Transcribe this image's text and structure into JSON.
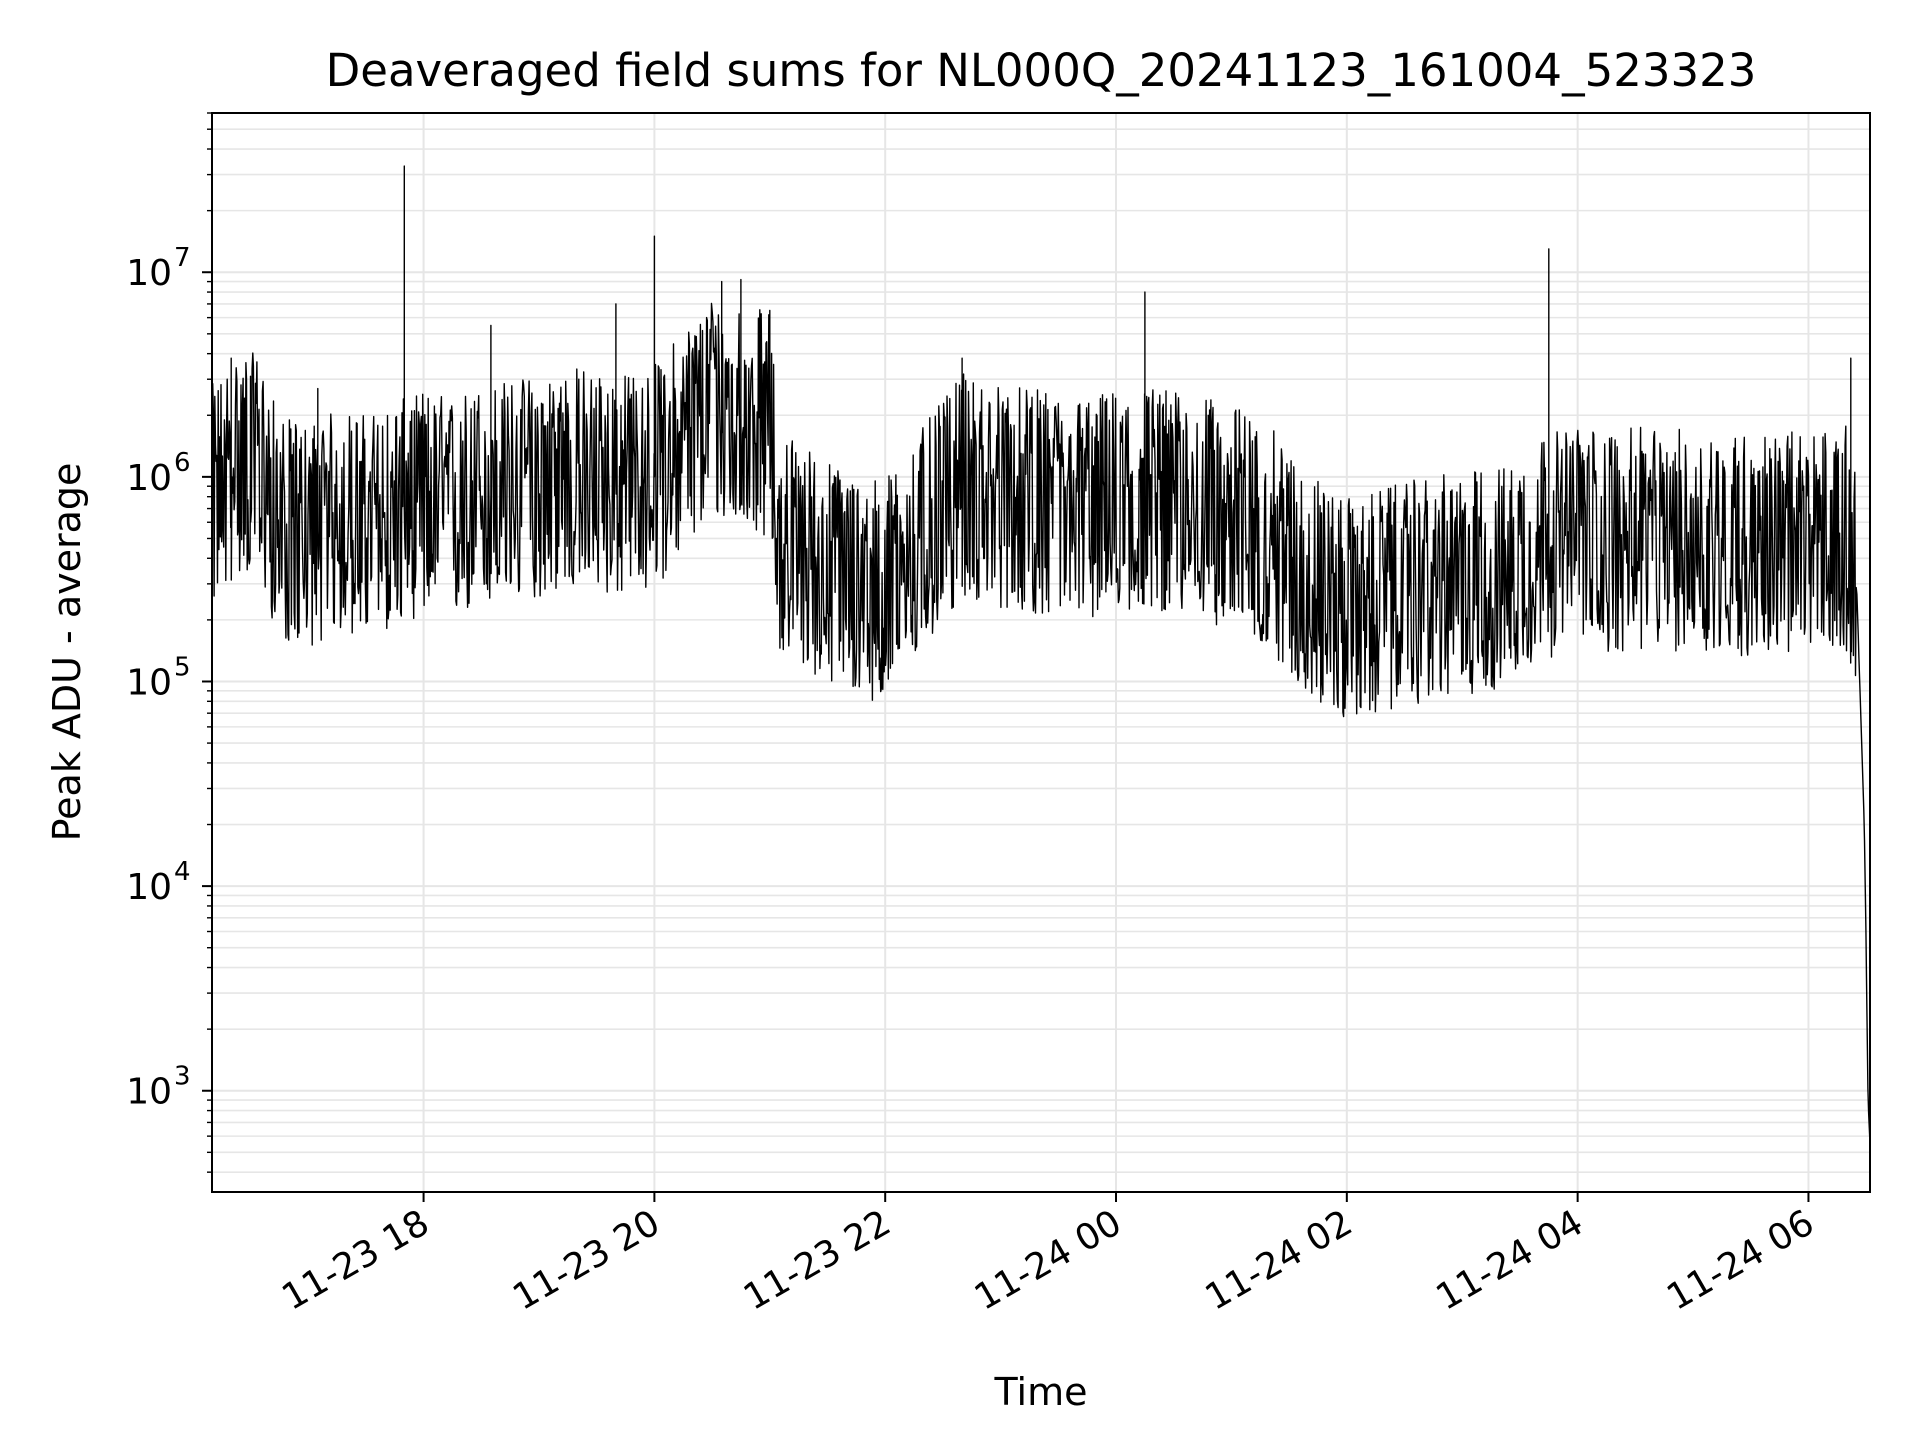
{
  "chart_data": {
    "type": "line",
    "title": "Deaveraged field sums for NL000Q_20241123_161004_523323",
    "xlabel": "Time",
    "ylabel": "Peak ADU - average",
    "yscale": "log",
    "grid": "on",
    "line_color": "#000000",
    "grid_color": "#e6e6e6",
    "xlim": [
      "2024-11-23 16:10",
      "2024-11-24 06:32"
    ],
    "ylim": [
      320,
      60000000
    ],
    "x_ticks": [
      {
        "value": "2024-11-23 18:00",
        "label": "11-23 18"
      },
      {
        "value": "2024-11-23 20:00",
        "label": "11-23 20"
      },
      {
        "value": "2024-11-23 22:00",
        "label": "11-23 22"
      },
      {
        "value": "2024-11-24 00:00",
        "label": "11-24 00"
      },
      {
        "value": "2024-11-24 02:00",
        "label": "11-24 02"
      },
      {
        "value": "2024-11-24 04:00",
        "label": "11-24 04"
      },
      {
        "value": "2024-11-24 06:00",
        "label": "11-24 06"
      }
    ],
    "y_ticks": [
      {
        "value": 1000,
        "base": "10",
        "exp": "3"
      },
      {
        "value": 10000,
        "base": "10",
        "exp": "4"
      },
      {
        "value": 100000,
        "base": "10",
        "exp": "5"
      },
      {
        "value": 1000000,
        "base": "10",
        "exp": "6"
      },
      {
        "value": 10000000,
        "base": "10",
        "exp": "7"
      }
    ],
    "series": [
      {
        "points": [
          [
            "2024-11-23 16:10",
            800000
          ],
          [
            "2024-11-23 16:25",
            1200000
          ],
          [
            "2024-11-23 16:35",
            1100000
          ],
          [
            "2024-11-23 16:45",
            550000
          ],
          [
            "2024-11-23 17:00",
            520000
          ],
          [
            "2024-11-23 17:15",
            600000
          ],
          [
            "2024-11-23 17:30",
            580000
          ],
          [
            "2024-11-23 17:45",
            650000
          ],
          [
            "2024-11-23 18:00",
            750000
          ],
          [
            "2024-11-23 18:15",
            700000
          ],
          [
            "2024-11-23 18:30",
            800000
          ],
          [
            "2024-11-23 18:45",
            850000
          ],
          [
            "2024-11-23 19:00",
            900000
          ],
          [
            "2024-11-23 19:15",
            1000000
          ],
          [
            "2024-11-23 19:30",
            950000
          ],
          [
            "2024-11-23 19:45",
            900000
          ],
          [
            "2024-11-23 20:00",
            1000000
          ],
          [
            "2024-11-23 20:15",
            1500000
          ],
          [
            "2024-11-23 20:30",
            2200000
          ],
          [
            "2024-11-23 20:45",
            2000000
          ],
          [
            "2024-11-23 21:00",
            1800000
          ],
          [
            "2024-11-23 21:05",
            500000
          ],
          [
            "2024-11-23 21:20",
            400000
          ],
          [
            "2024-11-23 21:40",
            300000
          ],
          [
            "2024-11-23 22:00",
            280000
          ],
          [
            "2024-11-23 22:20",
            500000
          ],
          [
            "2024-11-23 22:40",
            900000
          ],
          [
            "2024-11-23 23:00",
            800000
          ],
          [
            "2024-11-23 23:20",
            750000
          ],
          [
            "2024-11-23 23:40",
            700000
          ],
          [
            "2024-11-24 00:00",
            750000
          ],
          [
            "2024-11-24 00:20",
            800000
          ],
          [
            "2024-11-24 00:40",
            700000
          ],
          [
            "2024-11-24 01:00",
            650000
          ],
          [
            "2024-11-24 01:20",
            500000
          ],
          [
            "2024-11-24 01:40",
            300000
          ],
          [
            "2024-11-24 02:00",
            220000
          ],
          [
            "2024-11-24 02:20",
            250000
          ],
          [
            "2024-11-24 02:40",
            280000
          ],
          [
            "2024-11-24 03:00",
            300000
          ],
          [
            "2024-11-24 03:20",
            320000
          ],
          [
            "2024-11-24 03:40",
            450000
          ],
          [
            "2024-11-24 04:00",
            500000
          ],
          [
            "2024-11-24 04:20",
            480000
          ],
          [
            "2024-11-24 04:40",
            500000
          ],
          [
            "2024-11-24 05:00",
            480000
          ],
          [
            "2024-11-24 05:20",
            470000
          ],
          [
            "2024-11-24 05:40",
            460000
          ],
          [
            "2024-11-24 06:00",
            480000
          ],
          [
            "2024-11-24 06:20",
            500000
          ],
          [
            "2024-11-24 06:25",
            300000
          ],
          [
            "2024-11-24 06:27",
            80000
          ],
          [
            "2024-11-24 06:29",
            20000
          ],
          [
            "2024-11-24 06:30",
            5000
          ],
          [
            "2024-11-24 06:31",
            900
          ],
          [
            "2024-11-24 06:32",
            550
          ]
        ],
        "spikes": [
          [
            "2024-11-23 16:20",
            3800000
          ],
          [
            "2024-11-23 16:30",
            3100000
          ],
          [
            "2024-11-23 17:05",
            2700000
          ],
          [
            "2024-11-23 17:50",
            33000000
          ],
          [
            "2024-11-23 18:35",
            5500000
          ],
          [
            "2024-11-23 19:40",
            7000000
          ],
          [
            "2024-11-23 20:00",
            15000000
          ],
          [
            "2024-11-23 20:35",
            9000000
          ],
          [
            "2024-11-23 20:45",
            9200000
          ],
          [
            "2024-11-23 21:00",
            6500000
          ],
          [
            "2024-11-23 22:40",
            3800000
          ],
          [
            "2024-11-24 00:15",
            8000000
          ],
          [
            "2024-11-24 03:45",
            13000000
          ],
          [
            "2024-11-24 06:22",
            3800000
          ]
        ]
      }
    ]
  }
}
